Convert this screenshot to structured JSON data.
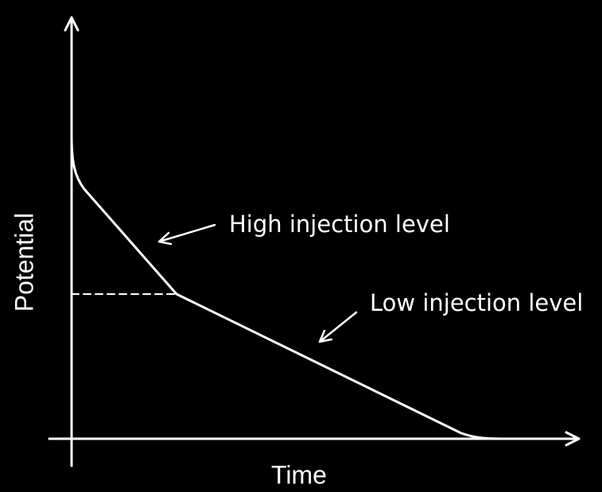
{
  "axes": {
    "y_label": "Potential",
    "x_label": "Time"
  },
  "annotations": {
    "high": "High injection level",
    "low": "Low injection level"
  }
}
